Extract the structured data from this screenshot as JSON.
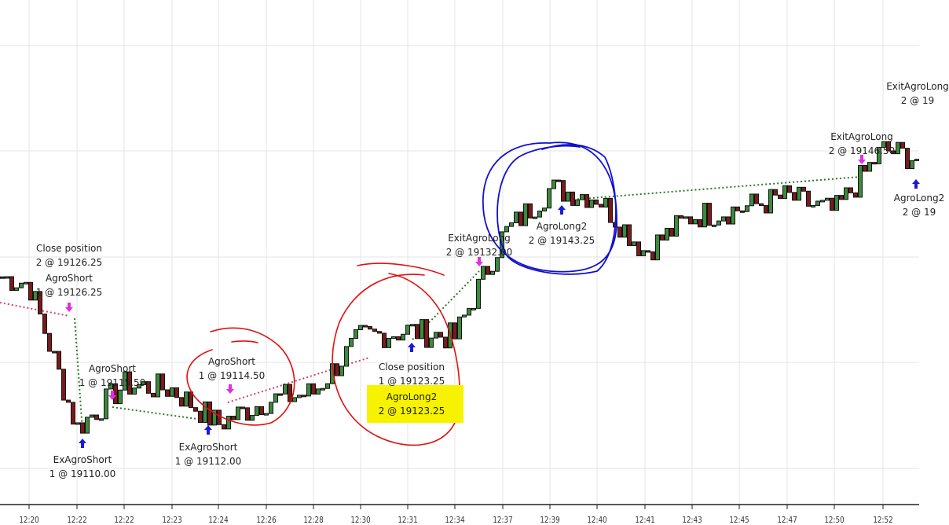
{
  "chart_data": {
    "type": "ohlc-bar",
    "title": "",
    "xlabel": "",
    "ylabel": "",
    "grid": true,
    "x_tick_labels": [
      "12:20",
      "12:22",
      "12:22",
      "12:23",
      "12:24",
      "12:26",
      "12:28",
      "12:30",
      "12:31",
      "12:34",
      "12:37",
      "12:39",
      "12:40",
      "12:41",
      "12:43",
      "12:45",
      "12:47",
      "12:50",
      "12:52"
    ],
    "approx_price_at_ticks": [
      19130.6,
      19110.3,
      19116.4,
      19115.8,
      19110.9,
      19114.2,
      19115.3,
      19123.0,
      19124.0,
      19123.0,
      19137.2,
      19143.8,
      19142.7,
      19135.0,
      19140.0,
      19141.0,
      19142.7,
      19140.5,
      19149.3
    ],
    "colors": {
      "up": "#3c8a3c",
      "down": "#7a1a1a",
      "entry_marker": "#1a1adb",
      "exit_marker": "#e030e0",
      "short_line": "#d04070",
      "long_line": "#2a7a2a",
      "highlight": "#f6f200",
      "red_annotation": "#e01010",
      "blue_annotation": "#1010d0"
    },
    "trades": [
      {
        "name": "Close position",
        "qty_price": "2 @ 19126.25",
        "marker": "exit"
      },
      {
        "name": "AgroShort",
        "qty_price": "1 @ 19126.25",
        "marker": "exit"
      },
      {
        "name": "AgroShort",
        "qty_price": "1 @ 19115.50",
        "marker": "exit"
      },
      {
        "name": "ExAgroShort",
        "qty_price": "1 @ 19110.00",
        "marker": "entry"
      },
      {
        "name": "AgroShort",
        "qty_price": "1 @ 19114.50",
        "marker": "exit"
      },
      {
        "name": "ExAgroShort",
        "qty_price": "1 @ 19112.00",
        "marker": "entry"
      },
      {
        "name": "Close position",
        "qty_price": "1 @ 19123.25",
        "marker": "entry"
      },
      {
        "name": "AgroLong2",
        "qty_price": "2 @ 19123.25",
        "marker": "entry"
      },
      {
        "name": "ExitAgroLong",
        "qty_price": "2 @ 19132.00",
        "marker": "exit"
      },
      {
        "name": "AgroLong2",
        "qty_price": "2 @ 19143.25",
        "marker": "entry"
      },
      {
        "name": "ExitAgroLong",
        "qty_price": "2 @ 19146.50",
        "marker": "exit"
      },
      {
        "name": "ExitAgroLong",
        "qty_price": "2 @ 19",
        "marker": "exit"
      },
      {
        "name": "AgroLong2",
        "qty_price": "2 @ 19",
        "marker": "entry"
      }
    ]
  }
}
